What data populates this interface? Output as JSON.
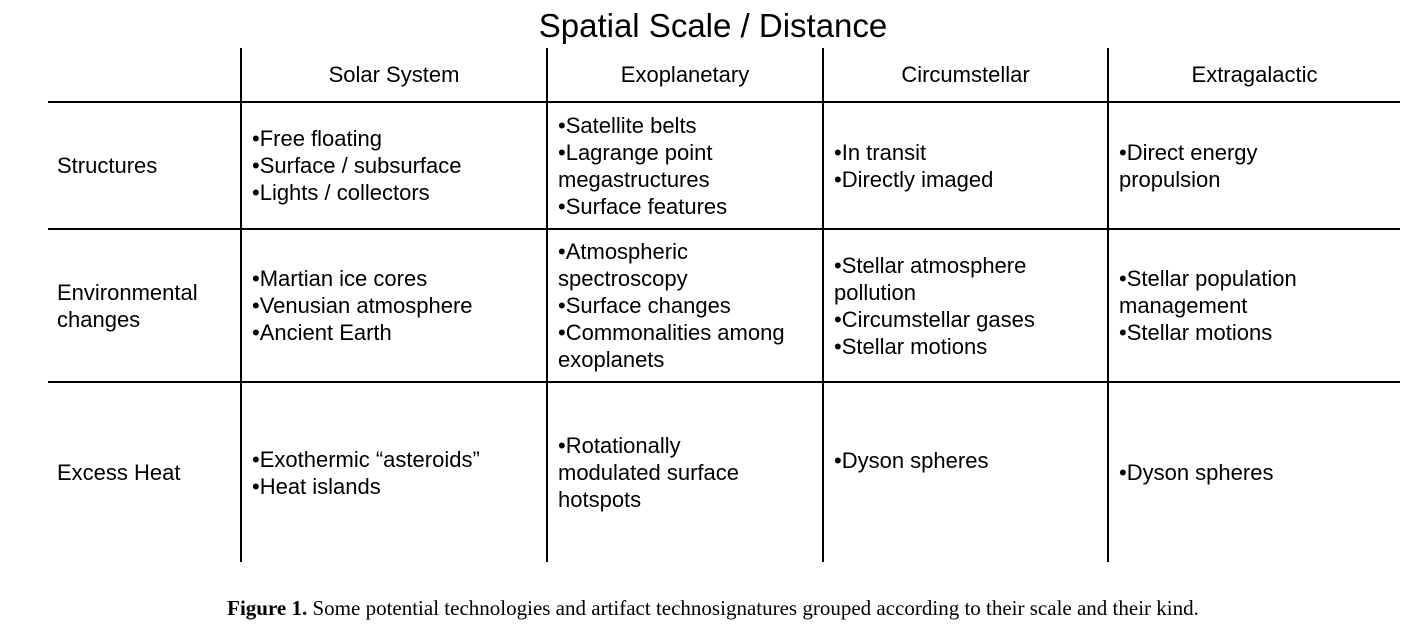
{
  "table": {
    "title": "Spatial Scale / Distance",
    "columns": [
      "Solar System",
      "Exoplanetary",
      "Circumstellar",
      "Extragalactic"
    ],
    "rows": [
      {
        "label_lines": [
          "Structures"
        ],
        "cells": [
          [
            "•Free floating",
            "•Surface / subsurface",
            "•Lights / collectors"
          ],
          [
            "•Satellite belts",
            "•Lagrange point",
            "megastructures",
            "•Surface features"
          ],
          [
            "•In transit",
            "•Directly imaged"
          ],
          [
            "•Direct energy",
            "propulsion"
          ]
        ]
      },
      {
        "label_lines": [
          "Environmental",
          "changes"
        ],
        "cells": [
          [
            "•Martian ice cores",
            "•Venusian atmosphere",
            "•Ancient Earth"
          ],
          [
            "•Atmospheric",
            "spectroscopy",
            "•Surface changes",
            "•Commonalities among",
            "exoplanets"
          ],
          [
            "•Stellar atmosphere",
            "pollution",
            "•Circumstellar gases",
            "•Stellar motions"
          ],
          [
            "•Stellar population",
            "management",
            "•Stellar motions"
          ]
        ]
      },
      {
        "label_lines": [
          "Excess Heat"
        ],
        "cells": [
          [
            "•Exothermic “asteroids”",
            "•Heat islands"
          ],
          [
            "•Rotationally",
            "modulated surface",
            "hotspots"
          ],
          [
            "•Dyson spheres"
          ],
          [
            "•Dyson spheres"
          ]
        ]
      }
    ]
  },
  "caption": {
    "label": "Figure 1.",
    "text": "Some potential technologies and artifact technosignatures grouped according to their scale and their kind."
  }
}
